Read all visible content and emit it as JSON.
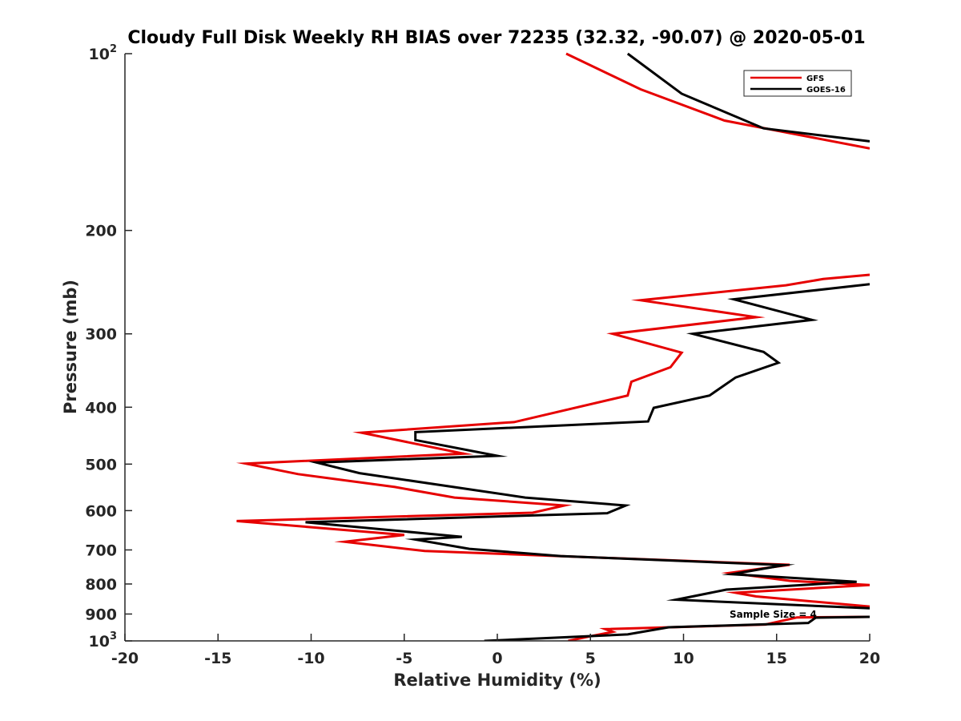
{
  "chart_data": {
    "type": "line",
    "title": "Cloudy Full Disk Weekly RH BIAS over 72235 (32.32, -90.07) @ 2020-05-01",
    "xlabel": "Relative Humidity (%)",
    "ylabel": "Pressure (mb)",
    "xlim": [
      -20,
      20
    ],
    "ylim": [
      100,
      1000
    ],
    "yscale": "log",
    "yreversed": true,
    "x_ticks": [
      "-20",
      "-15",
      "-10",
      "-5",
      "0",
      "5",
      "10",
      "15",
      "20"
    ],
    "y_ticks": [
      {
        "value": 100,
        "base": "10",
        "exp": "2"
      },
      {
        "value": 200,
        "label": "200"
      },
      {
        "value": 300,
        "label": "300"
      },
      {
        "value": 400,
        "label": "400"
      },
      {
        "value": 500,
        "label": "500"
      },
      {
        "value": 600,
        "label": "600"
      },
      {
        "value": 700,
        "label": "700"
      },
      {
        "value": 800,
        "label": "800"
      },
      {
        "value": 900,
        "label": "900"
      },
      {
        "value": 1000,
        "base": "10",
        "exp": "3"
      }
    ],
    "legend_position": "top-right",
    "annotation": "Sample Size = 4",
    "series": [
      {
        "name": "GFS",
        "color": "#e60000",
        "points": [
          [
            3.7,
            100
          ],
          [
            7.7,
            115
          ],
          [
            12.2,
            130
          ],
          [
            20,
            145
          ],
          [
            null,
            null
          ],
          [
            20,
            238
          ],
          [
            17.5,
            242
          ],
          [
            15.5,
            248
          ],
          [
            7.7,
            263
          ],
          [
            13.9,
            281
          ],
          [
            6.2,
            300
          ],
          [
            9.9,
            323
          ],
          [
            9.3,
            342
          ],
          [
            7.2,
            362
          ],
          [
            7.0,
            382
          ],
          [
            0.9,
            424
          ],
          [
            -7.3,
            442
          ],
          [
            -1.8,
            480
          ],
          [
            -13.5,
            499
          ],
          [
            -10.7,
            520
          ],
          [
            -5.5,
            547
          ],
          [
            -2.3,
            570
          ],
          [
            3.6,
            588
          ],
          [
            1.9,
            605
          ],
          [
            -14.0,
            625
          ],
          [
            -5.0,
            660
          ],
          [
            -8.2,
            678
          ],
          [
            -3.9,
            703
          ],
          [
            15.7,
            742
          ],
          [
            12.5,
            766
          ],
          [
            15.7,
            790
          ],
          [
            20,
            803
          ],
          [
            12.8,
            828
          ],
          [
            13.9,
            840
          ],
          [
            20,
            874
          ],
          [
            null,
            null
          ],
          [
            20,
            910
          ],
          [
            16.1,
            912
          ],
          [
            14.4,
            938
          ],
          [
            5.8,
            955
          ],
          [
            6.2,
            965
          ],
          [
            5.0,
            982
          ],
          [
            3.8,
            1000
          ]
        ]
      },
      {
        "name": "GOES-16",
        "color": "#000000",
        "points": [
          [
            7.0,
            100
          ],
          [
            9.9,
            117
          ],
          [
            14.3,
            134
          ],
          [
            20,
            141
          ],
          [
            null,
            null
          ],
          [
            20,
            247
          ],
          [
            12.7,
            262
          ],
          [
            16.9,
            284
          ],
          [
            10.5,
            300
          ],
          [
            14.3,
            322
          ],
          [
            15.1,
            336
          ],
          [
            12.8,
            356
          ],
          [
            11.4,
            382
          ],
          [
            8.4,
            401
          ],
          [
            8.1,
            423
          ],
          [
            -4.4,
            441
          ],
          [
            -4.4,
            455
          ],
          [
            0,
            484
          ],
          [
            -9.7,
            497
          ],
          [
            -7.4,
            518
          ],
          [
            1.5,
            570
          ],
          [
            6.9,
            588
          ],
          [
            5.9,
            606
          ],
          [
            -10.3,
            628
          ],
          [
            -1.9,
            665
          ],
          [
            -4.4,
            672
          ],
          [
            -1.5,
            697
          ],
          [
            3.4,
            717
          ],
          [
            15.4,
            743
          ],
          [
            12.6,
            770
          ],
          [
            19.3,
            793
          ],
          [
            12.3,
            818
          ],
          [
            9.6,
            851
          ],
          [
            20,
            880
          ],
          [
            null,
            null
          ],
          [
            20,
            910
          ],
          [
            17.1,
            913
          ],
          [
            16.7,
            932
          ],
          [
            9.2,
            948
          ],
          [
            7.0,
            975
          ],
          [
            -0.7,
            1000
          ]
        ]
      }
    ]
  }
}
